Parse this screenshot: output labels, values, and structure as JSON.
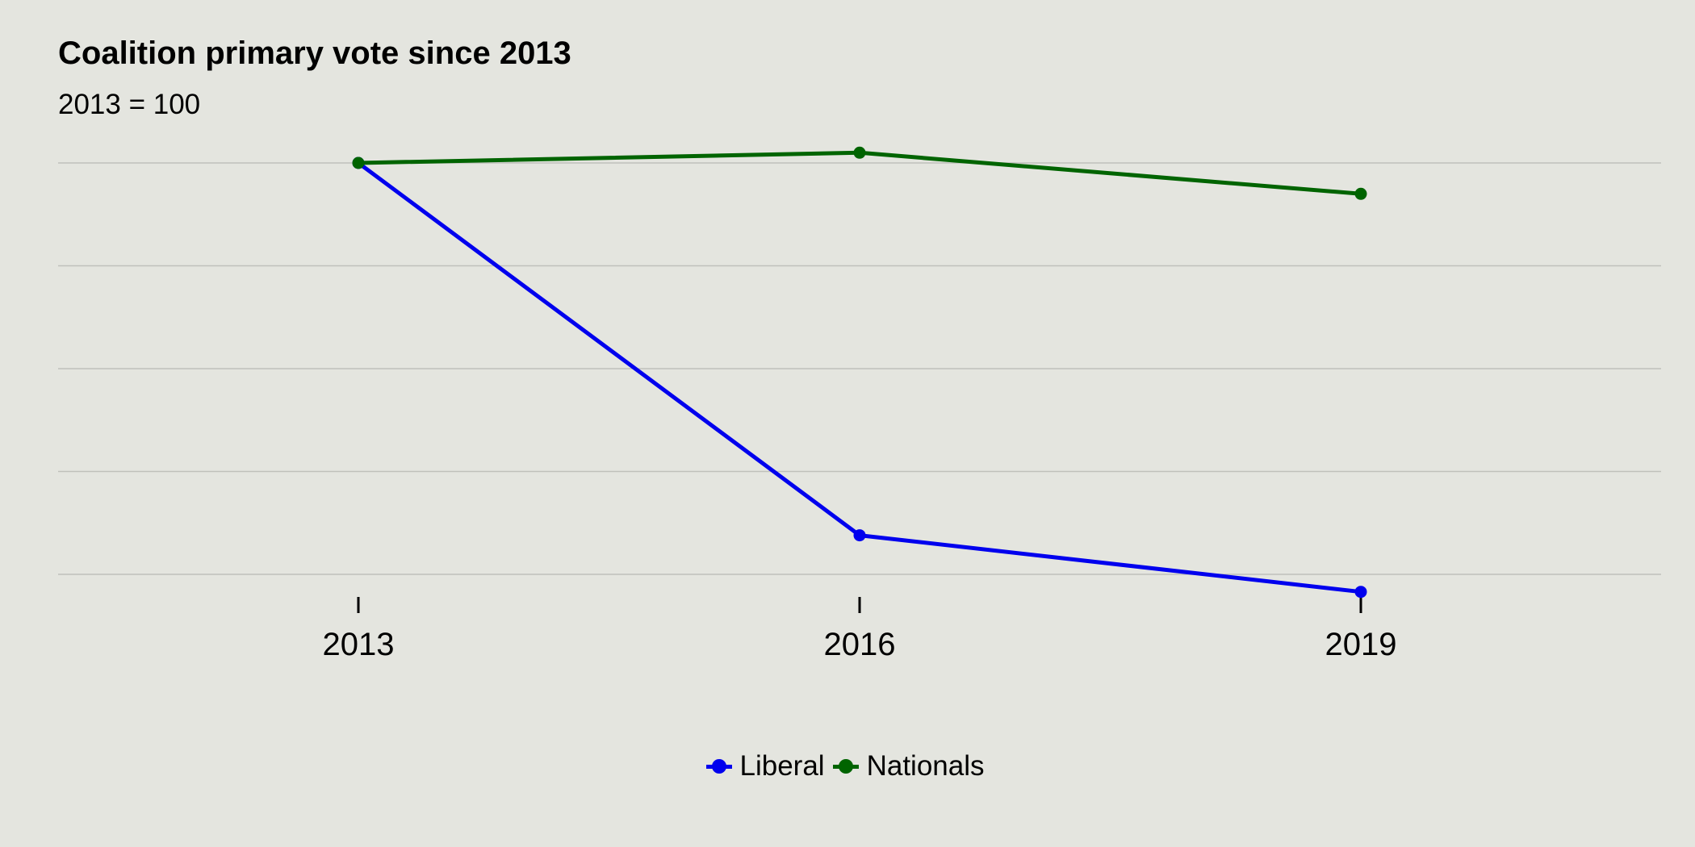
{
  "chart_data": {
    "type": "line",
    "title": "Coalition primary vote since 2013",
    "subtitle": "2013 = 100",
    "xlabel": "",
    "ylabel": "",
    "categories": [
      "2013",
      "2016",
      "2019"
    ],
    "series": [
      {
        "name": "Liberal",
        "values": [
          100,
          63.8,
          58.3
        ],
        "color": "#0000ee"
      },
      {
        "name": "Nationals",
        "values": [
          100,
          101,
          97
        ],
        "color": "#006400"
      }
    ],
    "ylim": [
      60,
      100
    ],
    "y_gridlines": [
      60,
      70,
      80,
      90,
      100
    ],
    "y_tick_labels_shown": false,
    "grid": "horizontal",
    "legend_position": "bottom",
    "background_color": "#e4e5df",
    "gridline_color": "#bfc0bb"
  }
}
